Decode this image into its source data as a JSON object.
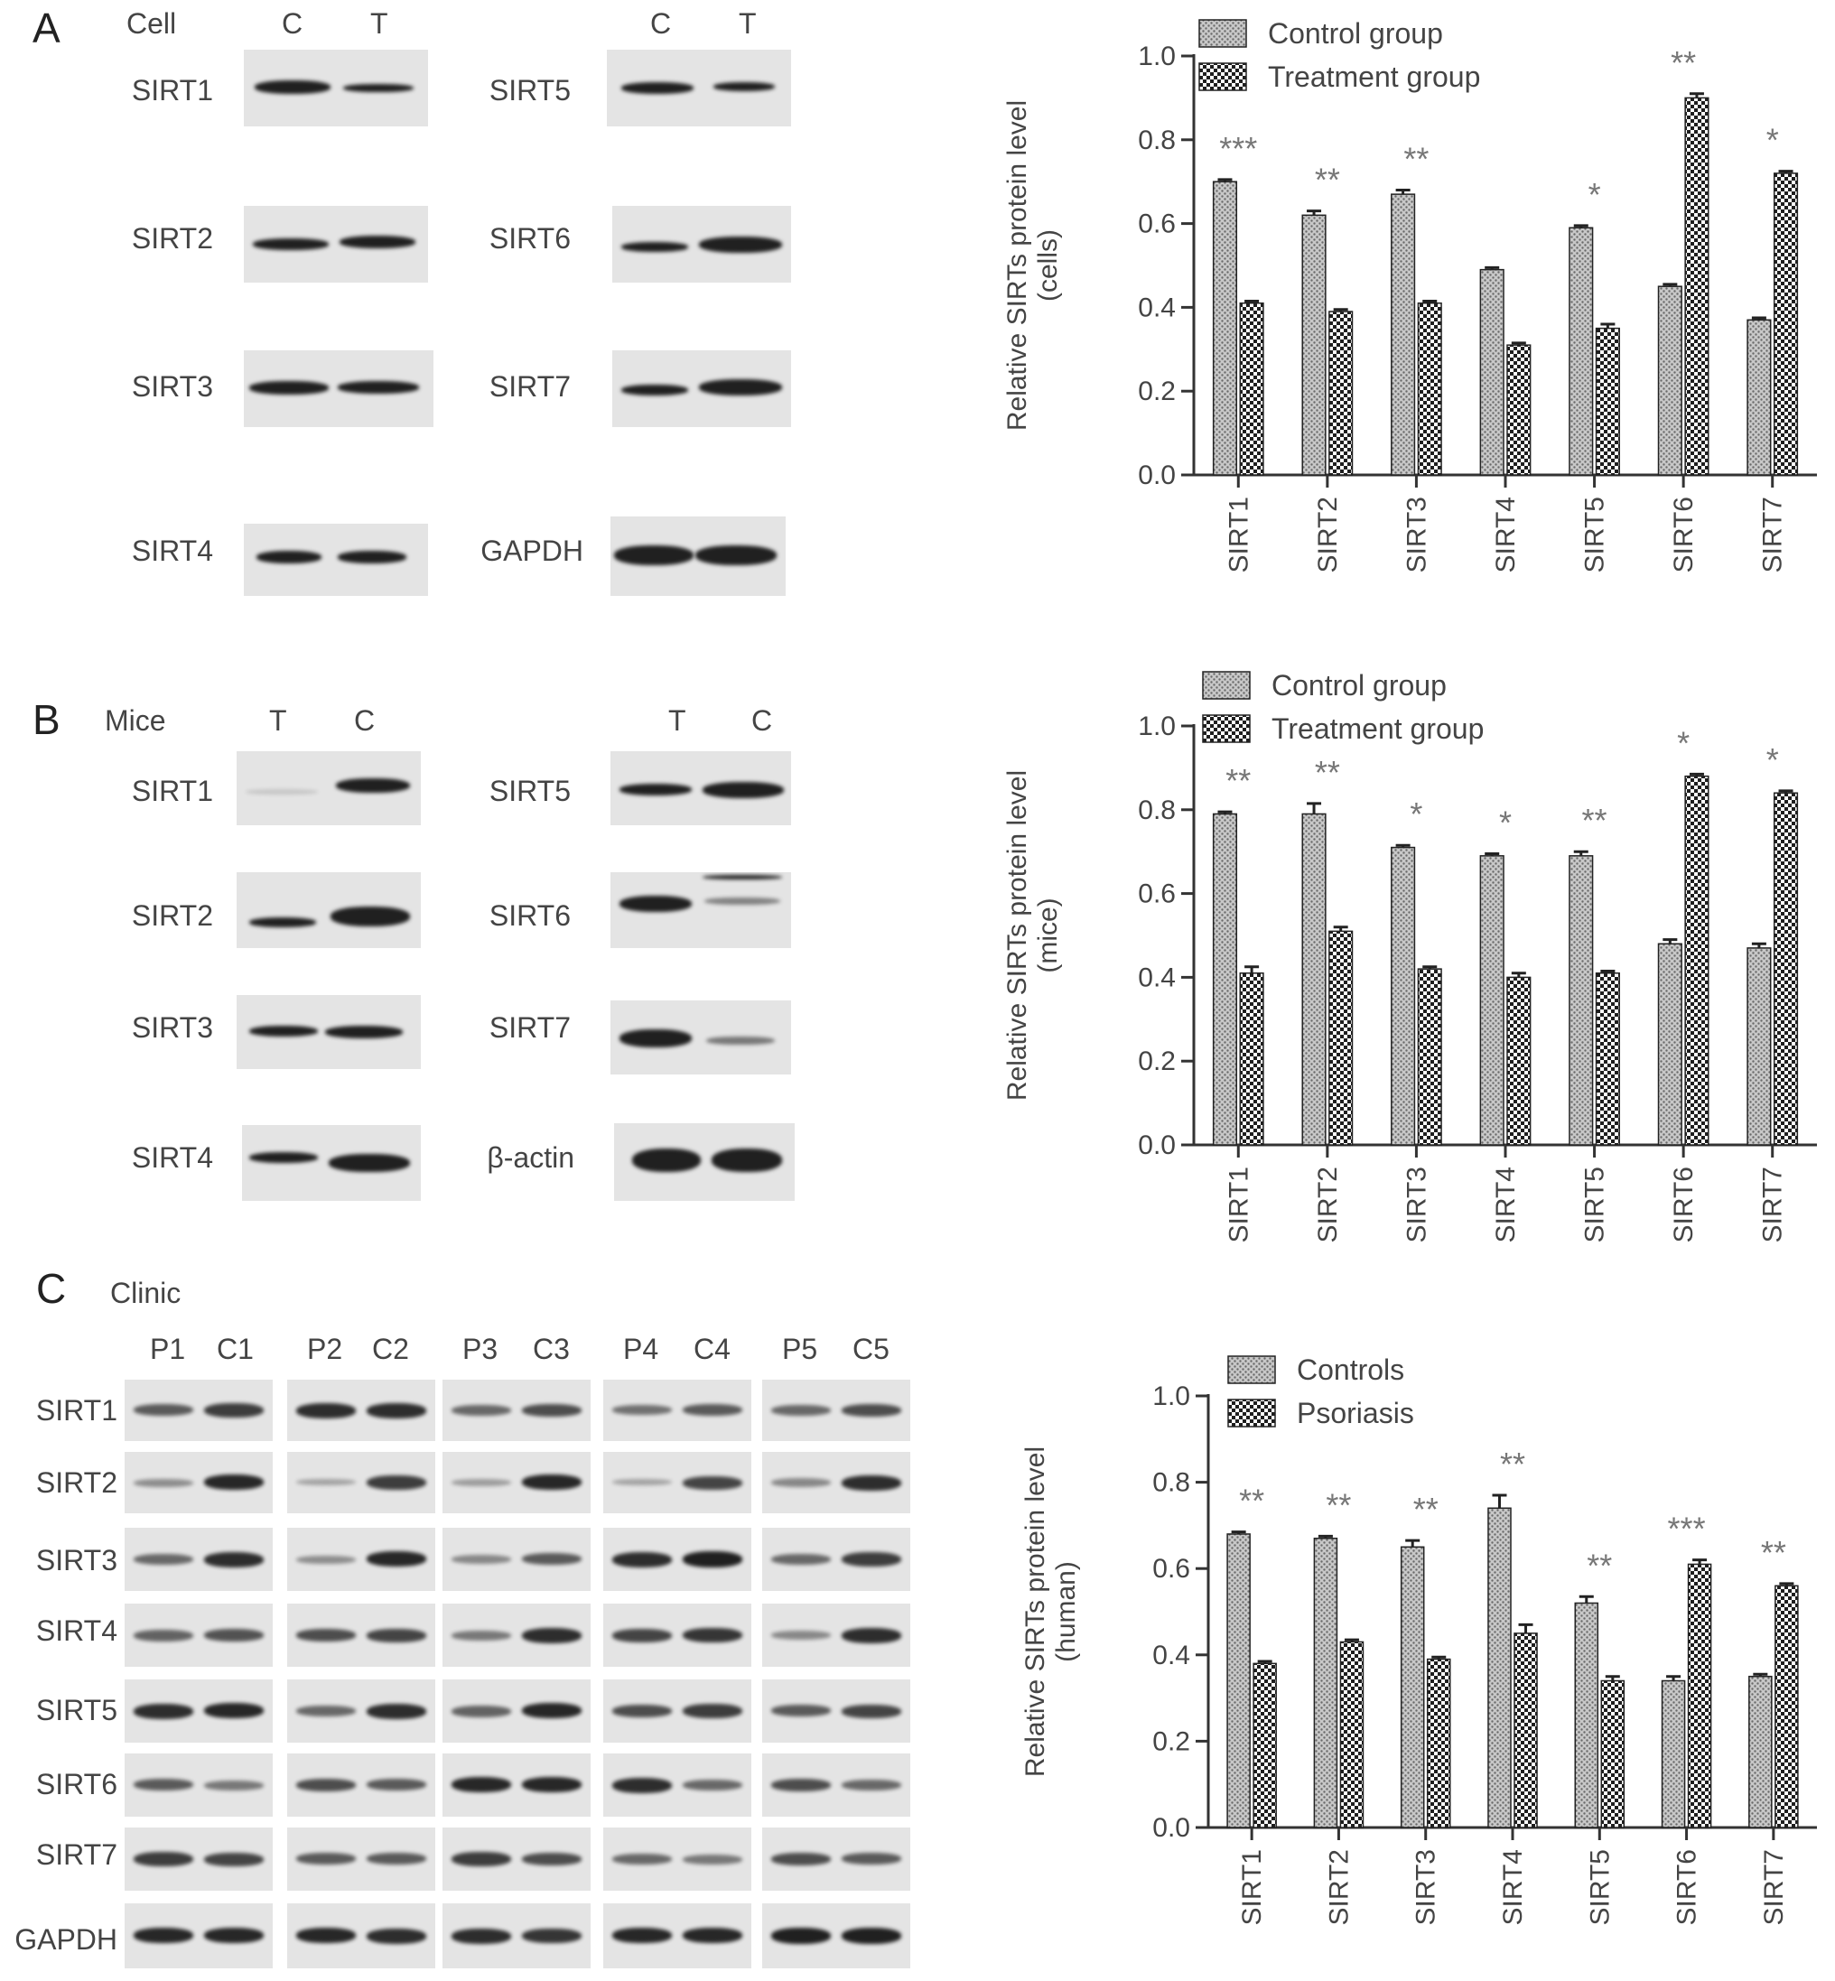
{
  "panel_a": {
    "letter": "A",
    "row_header": "Cell",
    "left_lanes": [
      "C",
      "T"
    ],
    "right_lanes": [
      "C",
      "T"
    ],
    "left_labels": [
      "SIRT1",
      "SIRT2",
      "SIRT3",
      "SIRT4"
    ],
    "right_labels": [
      "SIRT5",
      "SIRT6",
      "SIRT7",
      "GAPDH"
    ]
  },
  "panel_b": {
    "letter": "B",
    "row_header": "Mice",
    "left_lanes": [
      "T",
      "C"
    ],
    "right_lanes": [
      "T",
      "C"
    ],
    "left_labels": [
      "SIRT1",
      "SIRT2",
      "SIRT3",
      "SIRT4"
    ],
    "right_labels": [
      "SIRT5",
      "SIRT6",
      "SIRT7",
      "β-actin"
    ]
  },
  "panel_c": {
    "letter": "C",
    "row_header": "Clinic",
    "lanes": [
      "P1",
      "C1",
      "P2",
      "C2",
      "P3",
      "C3",
      "P4",
      "C4",
      "P5",
      "C5"
    ],
    "labels": [
      "SIRT1",
      "SIRT2",
      "SIRT3",
      "SIRT4",
      "SIRT5",
      "SIRT6",
      "SIRT7",
      "GAPDH"
    ]
  },
  "colors": {
    "bar_fill": "#8a8a8a",
    "axis": "#333333",
    "blot_bg": "#e4e4e4",
    "band": "#202020"
  },
  "chart_data": [
    {
      "type": "bar",
      "ylabel": "Relative SIRTs protein level",
      "ylabel2": "(cells)",
      "categories": [
        "SIRT1",
        "SIRT2",
        "SIRT3",
        "SIRT4",
        "SIRT5",
        "SIRT6",
        "SIRT7"
      ],
      "series": [
        {
          "name": "Control group",
          "values": [
            0.7,
            0.62,
            0.67,
            0.49,
            0.59,
            0.45,
            0.37
          ],
          "errors": [
            0.005,
            0.01,
            0.01,
            0.005,
            0.005,
            0.005,
            0.005
          ]
        },
        {
          "name": "Treatment group",
          "values": [
            0.41,
            0.39,
            0.41,
            0.31,
            0.35,
            0.9,
            0.72
          ],
          "errors": [
            0.005,
            0.005,
            0.005,
            0.005,
            0.01,
            0.01,
            0.005
          ]
        }
      ],
      "significance": [
        "***",
        "**",
        "**",
        "",
        "*",
        "**",
        "*"
      ],
      "yticks": [
        "0.0",
        "0.2",
        "0.4",
        "0.6",
        "0.8",
        "1.0"
      ],
      "ylim": [
        0,
        1.0
      ],
      "legend_position": "top"
    },
    {
      "type": "bar",
      "ylabel": "Relative SIRTs protein level",
      "ylabel2": "(mice)",
      "categories": [
        "SIRT1",
        "SIRT2",
        "SIRT3",
        "SIRT4",
        "SIRT5",
        "SIRT6",
        "SIRT7"
      ],
      "series": [
        {
          "name": "Control group",
          "values": [
            0.79,
            0.79,
            0.71,
            0.69,
            0.69,
            0.48,
            0.47
          ],
          "errors": [
            0.005,
            0.025,
            0.005,
            0.005,
            0.01,
            0.01,
            0.01
          ]
        },
        {
          "name": "Treatment group",
          "values": [
            0.41,
            0.51,
            0.42,
            0.4,
            0.41,
            0.88,
            0.84
          ],
          "errors": [
            0.015,
            0.01,
            0.005,
            0.01,
            0.005,
            0.005,
            0.005
          ]
        }
      ],
      "significance": [
        "**",
        "**",
        "*",
        "*",
        "**",
        "*",
        "*"
      ],
      "yticks": [
        "0.0",
        "0.2",
        "0.4",
        "0.6",
        "0.8",
        "1.0"
      ],
      "ylim": [
        0,
        1.0
      ],
      "legend_position": "top"
    },
    {
      "type": "bar",
      "ylabel": "Relative SIRTs protein level",
      "ylabel2": "(human)",
      "categories": [
        "SIRT1",
        "SIRT2",
        "SIRT3",
        "SIRT4",
        "SIRT5",
        "SIRT6",
        "SIRT7"
      ],
      "series": [
        {
          "name": "Controls",
          "values": [
            0.68,
            0.67,
            0.65,
            0.74,
            0.52,
            0.34,
            0.35
          ],
          "errors": [
            0.005,
            0.005,
            0.015,
            0.03,
            0.015,
            0.01,
            0.005
          ]
        },
        {
          "name": "Psoriasis",
          "values": [
            0.38,
            0.43,
            0.39,
            0.45,
            0.34,
            0.61,
            0.56
          ],
          "errors": [
            0.005,
            0.005,
            0.005,
            0.02,
            0.01,
            0.01,
            0.005
          ]
        }
      ],
      "significance": [
        "**",
        "**",
        "**",
        "**",
        "**",
        "***",
        "**"
      ],
      "yticks": [
        "0.0",
        "0.2",
        "0.4",
        "0.6",
        "0.8",
        "1.0"
      ],
      "ylim": [
        0,
        1.0
      ],
      "legend_position": "top"
    }
  ]
}
